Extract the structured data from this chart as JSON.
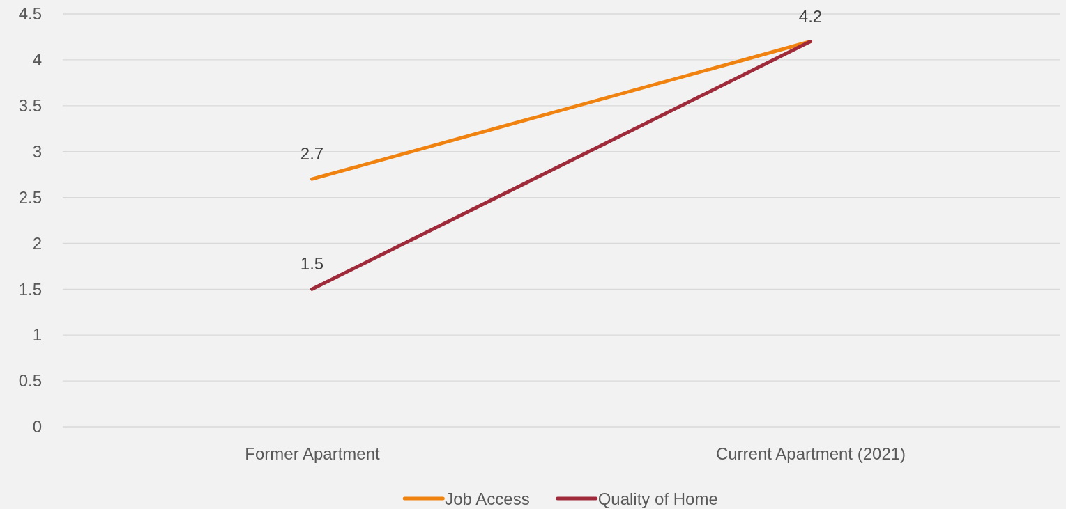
{
  "chart_data": {
    "type": "line",
    "categories": [
      "Former Apartment",
      "Current Apartment (2021)"
    ],
    "series": [
      {
        "name": "Job Access",
        "color": "#f0820f",
        "values": [
          2.7,
          4.2
        ],
        "value_labels": [
          "2.7",
          "4.2"
        ]
      },
      {
        "name": "Quality of Home",
        "color": "#9e2a3a",
        "values": [
          1.5,
          4.2
        ],
        "value_labels": [
          "1.5",
          null
        ]
      }
    ],
    "ylim": [
      0,
      4.5
    ],
    "yticks": [
      0,
      0.5,
      1,
      1.5,
      2,
      2.5,
      3,
      3.5,
      4,
      4.5
    ],
    "grid": "y",
    "legend": "bottom",
    "marker": "none",
    "line_style": "solid"
  }
}
